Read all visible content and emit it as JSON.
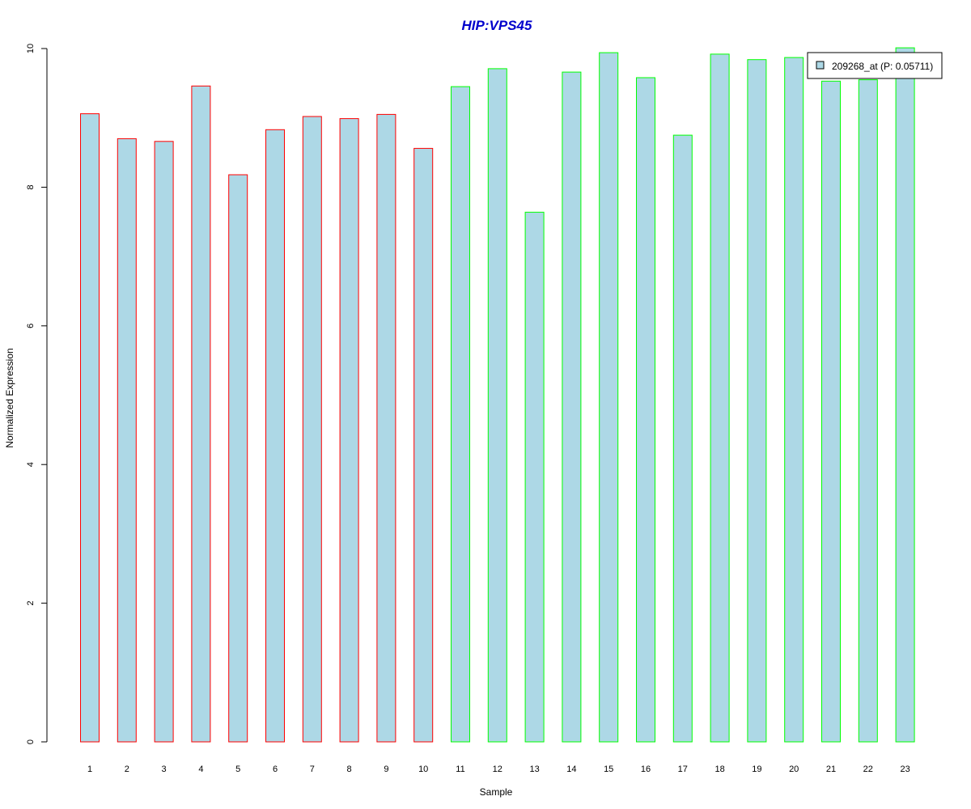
{
  "chart_data": {
    "type": "bar",
    "title": "HIP:VPS45",
    "xlabel": "Sample",
    "ylabel": "Normalized Expression",
    "categories": [
      "1",
      "2",
      "3",
      "4",
      "5",
      "6",
      "7",
      "8",
      "9",
      "10",
      "11",
      "12",
      "13",
      "14",
      "15",
      "16",
      "17",
      "18",
      "19",
      "20",
      "21",
      "22",
      "23"
    ],
    "values": [
      9.06,
      8.7,
      8.66,
      9.46,
      8.18,
      8.83,
      9.02,
      8.99,
      9.05,
      8.56,
      9.45,
      9.71,
      7.64,
      9.66,
      9.94,
      9.58,
      8.75,
      9.92,
      9.84,
      9.87,
      9.53,
      9.55,
      10.01
    ],
    "groups": [
      "red",
      "red",
      "red",
      "red",
      "red",
      "red",
      "red",
      "red",
      "red",
      "red",
      "green",
      "green",
      "green",
      "green",
      "green",
      "green",
      "green",
      "green",
      "green",
      "green",
      "green",
      "green",
      "green"
    ],
    "ylim": [
      0,
      10
    ],
    "yticks": [
      0,
      2,
      4,
      6,
      8,
      10
    ],
    "grid": false,
    "legend": {
      "position": "top-right",
      "label": "209268_at (P: 0.05711)"
    },
    "colors": {
      "title": "#0000cc",
      "fill": "#add8e6",
      "group_red": "#ff0000",
      "group_green": "#00ff00"
    }
  }
}
